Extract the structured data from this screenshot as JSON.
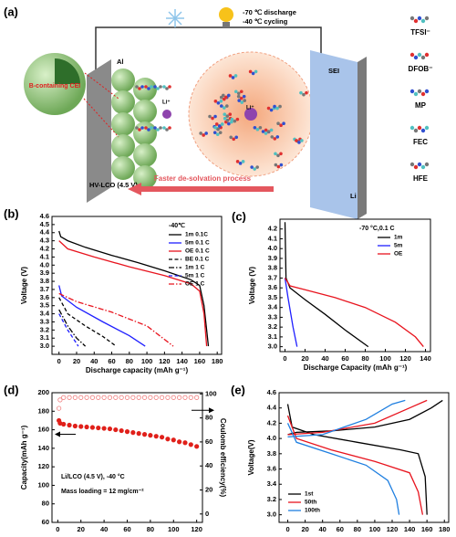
{
  "schematic": {
    "label": "(a)",
    "conditions": [
      "-70 ℃ discharge",
      "-40 ℃ cycling"
    ],
    "collector": "Al",
    "cei": "B-containing CEI",
    "li_ion": "Li⁺",
    "cathode": "HV-LCO (4.5 V)",
    "arrow": "Faster de-solvation process",
    "sei": "SEI",
    "anode": "Li",
    "species": [
      "TFSI⁻",
      "DFOB⁻",
      "MP",
      "FEC",
      "HFE"
    ]
  },
  "chart_data": [
    {
      "type": "line",
      "label": "(b)",
      "title": "-40℃",
      "x_label": "Discharge capacity (mAh g⁻¹)",
      "y_label": "Voltage (V)",
      "legend": "upper right",
      "xlim": [
        -8,
        185
      ],
      "xticks": [
        0,
        20,
        40,
        60,
        80,
        100,
        120,
        140,
        160,
        180
      ],
      "ylim": [
        2.9,
        4.6
      ],
      "yticks": [
        {
          "value": 3,
          "label": "3.0"
        },
        3.1,
        3.2,
        3.3,
        3.4,
        3.5,
        3.6,
        3.7,
        3.8,
        3.9,
        {
          "value": 4,
          "label": "4.0"
        },
        4.1,
        4.2,
        4.3,
        4.4,
        4.5,
        4.6
      ],
      "series": [
        {
          "name": "1m 0.1C",
          "color": "#000000",
          "style": "solid",
          "x": [
            0,
            2,
            10,
            30,
            60,
            90,
            120,
            150,
            160,
            165,
            168,
            170
          ],
          "values": [
            4.42,
            4.35,
            4.3,
            4.22,
            4.12,
            4.03,
            3.93,
            3.82,
            3.75,
            3.5,
            3.2,
            3.0
          ]
        },
        {
          "name": "5m 0.1 C",
          "color": "#1f1fff",
          "style": "solid",
          "x": [
            0,
            3,
            20,
            50,
            80,
            98
          ],
          "values": [
            3.75,
            3.62,
            3.48,
            3.3,
            3.13,
            3.0
          ]
        },
        {
          "name": "OE 0.1 C",
          "color": "#e8141e",
          "style": "solid",
          "x": [
            0,
            10,
            40,
            80,
            120,
            150,
            160,
            165,
            168
          ],
          "values": [
            4.3,
            4.2,
            4.1,
            3.98,
            3.87,
            3.77,
            3.68,
            3.4,
            3.0
          ]
        },
        {
          "name": "BE 0.1 C",
          "color": "#000000",
          "style": "dash",
          "x": [
            0,
            10,
            30,
            50,
            65
          ],
          "values": [
            3.6,
            3.4,
            3.25,
            3.12,
            3.0
          ]
        },
        {
          "name": "1m 1 C",
          "color": "#000000",
          "style": "dashdot",
          "x": [
            0,
            10,
            20,
            30
          ],
          "values": [
            3.45,
            3.25,
            3.1,
            3.0
          ]
        },
        {
          "name": "5m 1 C",
          "color": "#1f1fff",
          "style": "dash",
          "x": [
            0,
            10,
            22
          ],
          "values": [
            3.4,
            3.2,
            3.0
          ]
        },
        {
          "name": "OE 1 C",
          "color": "#e8141e",
          "style": "dashdot",
          "x": [
            0,
            20,
            60,
            100,
            130
          ],
          "values": [
            3.65,
            3.55,
            3.42,
            3.25,
            3.0
          ]
        }
      ]
    },
    {
      "type": "line",
      "label": "(c)",
      "title": "-70 °C,0.1 C",
      "x_label": "Discharge Capacity (mAh g⁻¹)",
      "y_label": "Voltage (V)",
      "legend": "upper right",
      "xlim": [
        -5,
        145
      ],
      "xticks": [
        0,
        20,
        40,
        60,
        80,
        100,
        120,
        140
      ],
      "ylim": [
        2.95,
        4.3
      ],
      "yticks": [
        {
          "value": 3,
          "label": "3.0"
        },
        3.1,
        3.2,
        3.3,
        3.4,
        3.5,
        3.6,
        3.7,
        3.8,
        3.9,
        {
          "value": 4,
          "label": "4.0"
        },
        4.1,
        4.2
      ],
      "series": [
        {
          "name": "1m",
          "color": "#000000",
          "style": "solid",
          "x": [
            0,
            1,
            5,
            20,
            40,
            60,
            83
          ],
          "values": [
            4.27,
            3.7,
            3.6,
            3.48,
            3.33,
            3.17,
            3.0
          ]
        },
        {
          "name": "5m",
          "color": "#1f1fff",
          "style": "solid",
          "x": [
            0,
            3,
            8,
            12
          ],
          "values": [
            3.7,
            3.5,
            3.2,
            3.0
          ]
        },
        {
          "name": "OE",
          "color": "#e8141e",
          "style": "solid",
          "x": [
            0,
            5,
            20,
            50,
            80,
            110,
            130,
            138
          ],
          "values": [
            3.7,
            3.62,
            3.58,
            3.5,
            3.4,
            3.25,
            3.1,
            3.0
          ]
        }
      ]
    },
    {
      "type": "scatter",
      "label": "(d)",
      "y_label": "Capacity(mAh g⁻¹)",
      "y2_label": "Coulomb efficiency(%)",
      "annotations": [
        "Li/LCO (4.5 V), -40 °C",
        "Mass loading = 12 mg/cm⁻²"
      ],
      "xlim": [
        -5,
        125
      ],
      "xticks": [
        0,
        20,
        40,
        60,
        80,
        100,
        120
      ],
      "ylim": [
        60,
        200
      ],
      "yticks": [
        60,
        80,
        100,
        120,
        140,
        160,
        180,
        200
      ],
      "y2lim": [
        -7,
        101
      ],
      "y2ticks": [
        0,
        20,
        40,
        60,
        80,
        100
      ],
      "x": [
        1,
        2,
        5,
        10,
        15,
        20,
        25,
        30,
        35,
        40,
        45,
        50,
        55,
        60,
        65,
        70,
        75,
        80,
        85,
        90,
        95,
        100,
        105,
        110,
        115,
        120
      ],
      "series": [
        {
          "color": "#e0201a",
          "marker": "filled",
          "values": [
            170,
            167,
            166,
            165,
            164,
            163.5,
            163,
            162.5,
            162,
            161.5,
            161,
            160,
            159,
            158,
            157,
            156,
            155,
            154,
            153,
            152,
            150,
            149,
            147,
            146,
            144,
            142
          ]
        },
        {
          "color": "#f08080",
          "marker": "open",
          "axis": "y2",
          "values": [
            88,
            95,
            97,
            97,
            97,
            97,
            97,
            97,
            97,
            97,
            97,
            97,
            97,
            97,
            97,
            97,
            97,
            97,
            97,
            97,
            97,
            97,
            97,
            97,
            97,
            97
          ]
        }
      ]
    },
    {
      "type": "line",
      "label": "(e)",
      "y_label": "Voltage(V)",
      "legend": "lower left",
      "xlim": [
        -10,
        185
      ],
      "xticks": [
        0,
        20,
        40,
        60,
        80,
        100,
        120,
        140,
        160,
        180
      ],
      "ylim": [
        2.9,
        4.6
      ],
      "yticks": [
        {
          "value": 3,
          "label": "3.0"
        },
        3.2,
        3.4,
        3.6,
        3.8,
        {
          "value": 4,
          "label": "4.0"
        },
        4.2,
        4.4,
        4.6
      ],
      "series": [
        {
          "name": "1st",
          "color": "#000000",
          "style": "solid",
          "x": [
            0,
            10,
            50,
            100,
            140,
            165,
            178,
            null,
            0,
            5,
            30,
            80,
            130,
            150,
            158,
            160
          ],
          "values": [
            4.05,
            4.08,
            4.1,
            4.15,
            4.25,
            4.4,
            4.5,
            null,
            4.45,
            4.15,
            4.05,
            3.95,
            3.85,
            3.8,
            3.5,
            3.0
          ]
        },
        {
          "name": "50th",
          "color": "#e8141e",
          "style": "solid",
          "x": [
            0,
            40,
            100,
            140,
            160,
            null,
            0,
            10,
            50,
            100,
            140,
            150,
            155
          ],
          "values": [
            4.05,
            4.08,
            4.2,
            4.4,
            4.5,
            null,
            4.3,
            4.0,
            3.85,
            3.7,
            3.55,
            3.3,
            3.0
          ]
        },
        {
          "name": "100th",
          "color": "#1f7fe0",
          "style": "solid",
          "x": [
            0,
            40,
            90,
            120,
            135,
            null,
            0,
            10,
            50,
            90,
            115,
            125,
            128
          ],
          "values": [
            4.02,
            4.05,
            4.25,
            4.45,
            4.5,
            null,
            4.2,
            3.95,
            3.8,
            3.65,
            3.45,
            3.2,
            3.0
          ]
        }
      ]
    }
  ]
}
